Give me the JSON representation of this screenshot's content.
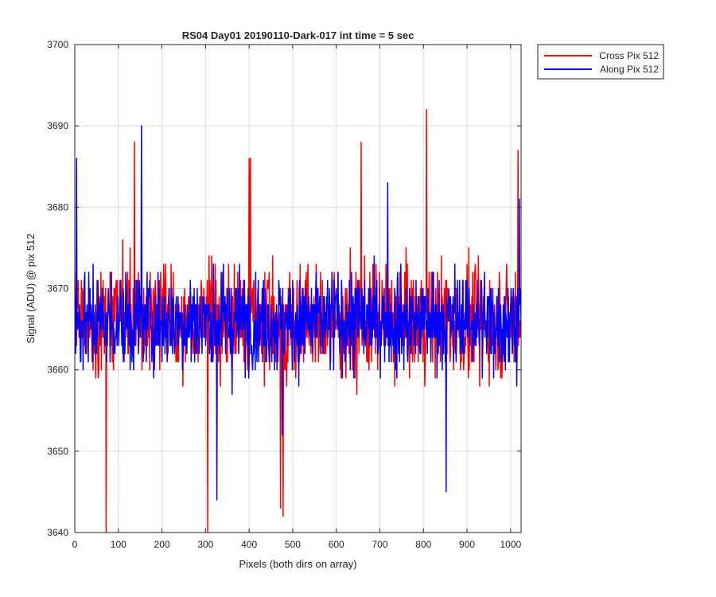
{
  "chart_data": {
    "type": "line",
    "title": "RS04 Day01 20190110-Dark-017 int time = 5 sec",
    "xlabel": "Pixels (both dirs on array)",
    "ylabel": "Signal (ADU) @ pix 512",
    "xlim": [
      0,
      1024
    ],
    "ylim": [
      3640,
      3700
    ],
    "xticks": [
      0,
      100,
      200,
      300,
      400,
      500,
      600,
      700,
      800,
      900,
      1000
    ],
    "yticks": [
      3640,
      3650,
      3660,
      3670,
      3680,
      3690,
      3700
    ],
    "grid": true,
    "legend_position": "outside-top-right",
    "noise_seed": 20190110,
    "series": [
      {
        "name": "Cross Pix 512",
        "color": "#ff0000",
        "mean": 3666,
        "spread": 12,
        "extremes": [
          [
            72,
            3640
          ],
          [
            137,
            3688
          ],
          [
            305,
            3640
          ],
          [
            400,
            3686
          ],
          [
            403,
            3686
          ],
          [
            472,
            3643
          ],
          [
            478,
            3642
          ],
          [
            657,
            3688
          ],
          [
            807,
            3692
          ],
          [
            1017,
            3687
          ]
        ]
      },
      {
        "name": "Along Pix 512",
        "color": "#0000ff",
        "mean": 3666,
        "spread": 11,
        "extremes": [
          [
            4,
            3686
          ],
          [
            153,
            3690
          ],
          [
            326,
            3644
          ],
          [
            476,
            3652
          ],
          [
            718,
            3683
          ],
          [
            852,
            3645
          ],
          [
            1020,
            3681
          ]
        ]
      }
    ]
  }
}
